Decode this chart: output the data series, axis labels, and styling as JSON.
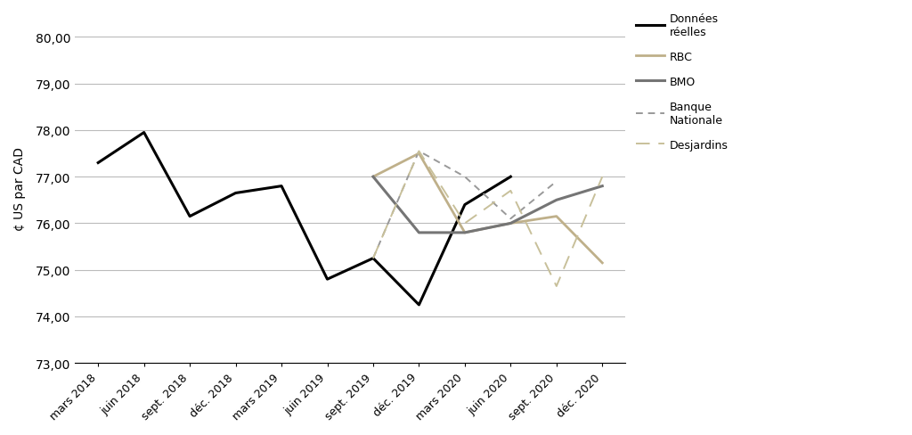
{
  "x_labels": [
    "mars 2018",
    "juin 2018",
    "sept. 2018",
    "déc. 2018",
    "mars 2019",
    "juin 2019",
    "sept. 2019",
    "déc. 2019",
    "mars 2020",
    "juin 2020",
    "sept. 2020",
    "déc. 2020"
  ],
  "donnees_reelles": {
    "x_indices": [
      0,
      1,
      2,
      3,
      4,
      5,
      6,
      7,
      8,
      9
    ],
    "y": [
      77.3,
      77.95,
      76.15,
      76.65,
      76.8,
      74.8,
      75.25,
      74.25,
      76.4,
      77.0
    ],
    "color": "#000000",
    "linewidth": 2.2,
    "label": "Données\nréelles",
    "linestyle": "solid"
  },
  "rbc": {
    "x_indices": [
      6,
      7,
      8,
      9,
      10,
      11
    ],
    "y": [
      77.0,
      77.5,
      75.8,
      76.0,
      76.15,
      75.15
    ],
    "color": "#bfb08a",
    "linewidth": 2.0,
    "label": "RBC",
    "linestyle": "solid"
  },
  "bmo": {
    "x_indices": [
      6,
      7,
      8,
      9,
      10,
      11
    ],
    "y": [
      77.0,
      75.8,
      75.8,
      76.0,
      76.5,
      76.8
    ],
    "color": "#757575",
    "linewidth": 2.2,
    "label": "BMO",
    "linestyle": "solid"
  },
  "banque_nationale": {
    "x_indices": [
      6,
      7,
      8,
      9,
      10
    ],
    "y": [
      75.25,
      77.55,
      77.0,
      76.1,
      76.9
    ],
    "color": "#999999",
    "linewidth": 1.4,
    "label": "Banque\nNationale",
    "dashes": [
      4,
      3
    ]
  },
  "desjardins": {
    "x_indices": [
      6,
      7,
      8,
      9,
      10,
      11
    ],
    "y": [
      75.25,
      77.55,
      76.0,
      76.7,
      74.65,
      77.0
    ],
    "color": "#c8c09a",
    "linewidth": 1.4,
    "label": "Desjardins",
    "dashes": [
      8,
      5
    ]
  },
  "ylabel": "¢ US par CAD",
  "ylim": [
    73.0,
    80.5
  ],
  "yticks": [
    73.0,
    74.0,
    75.0,
    76.0,
    77.0,
    78.0,
    79.0,
    80.0
  ],
  "background_color": "#ffffff",
  "grid_color": "#bbbbbb"
}
